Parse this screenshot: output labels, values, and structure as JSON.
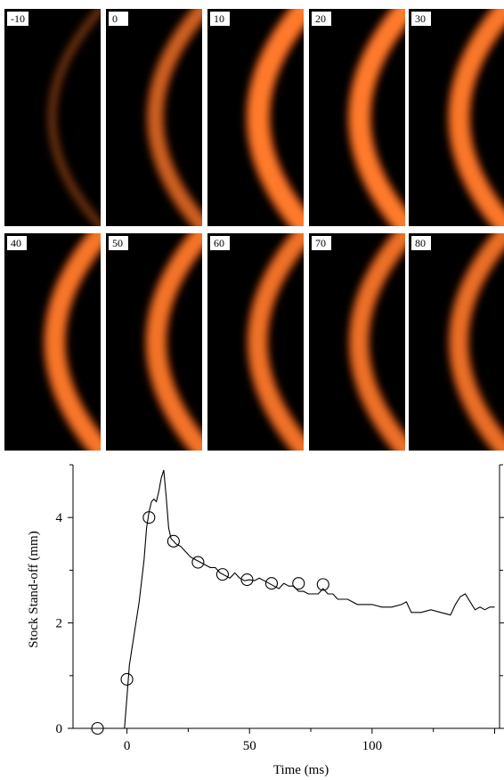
{
  "frames": {
    "labels": [
      "-10",
      "0",
      "10",
      "20",
      "30",
      "40",
      "50",
      "60",
      "70",
      "80"
    ],
    "intensity": [
      0.12,
      0.6,
      1.0,
      0.95,
      0.9,
      0.88,
      0.85,
      0.82,
      0.8,
      0.78
    ],
    "glow_color": "#ff5a14",
    "core_color": "#ff7a2a"
  },
  "chart_data": {
    "type": "line",
    "xlabel": "Time (ms)",
    "ylabel": "Stock Stand-off (mm)",
    "xlim": [
      -22,
      152
    ],
    "ylim": [
      0,
      5
    ],
    "xticks": [
      "0",
      "50",
      "100"
    ],
    "yticks": [
      "0",
      "2",
      "4"
    ],
    "grid": false,
    "series": [
      {
        "style": "line",
        "x": [
          -20,
          -1,
          0,
          1,
          3,
          5,
          7,
          8,
          9,
          10,
          11,
          12,
          13,
          14,
          15,
          16,
          17,
          18,
          19,
          20,
          22,
          24,
          26,
          28,
          30,
          32,
          34,
          36,
          38,
          40,
          42,
          44,
          46,
          48,
          50,
          52,
          54,
          56,
          58,
          60,
          62,
          64,
          66,
          68,
          70,
          72,
          74,
          76,
          78,
          80,
          82,
          84,
          86,
          88,
          90,
          92,
          94,
          96,
          98,
          100,
          104,
          108,
          112,
          114,
          116,
          120,
          124,
          128,
          132,
          134,
          136,
          138,
          140,
          142,
          144,
          146,
          148,
          150
        ],
        "y": [
          0,
          0,
          0.6,
          1.2,
          1.8,
          2.4,
          3.2,
          3.8,
          4.1,
          4.3,
          4.35,
          4.3,
          4.5,
          4.75,
          4.9,
          4.4,
          3.8,
          3.6,
          3.55,
          3.5,
          3.45,
          3.35,
          3.25,
          3.2,
          3.15,
          3.1,
          3.05,
          3.05,
          2.95,
          2.9,
          2.85,
          2.95,
          2.85,
          2.8,
          2.82,
          2.8,
          2.85,
          2.8,
          2.75,
          2.7,
          2.65,
          2.75,
          2.7,
          2.7,
          2.6,
          2.6,
          2.55,
          2.55,
          2.55,
          2.65,
          2.55,
          2.55,
          2.45,
          2.45,
          2.45,
          2.4,
          2.35,
          2.35,
          2.35,
          2.35,
          2.3,
          2.3,
          2.35,
          2.4,
          2.2,
          2.2,
          2.25,
          2.2,
          2.15,
          2.35,
          2.5,
          2.55,
          2.4,
          2.25,
          2.3,
          2.25,
          2.3,
          2.3
        ]
      },
      {
        "style": "markers",
        "marker": "circle",
        "x": [
          -12,
          0,
          9,
          19,
          29,
          39,
          49,
          59,
          70,
          80
        ],
        "y": [
          0,
          0.93,
          4.0,
          3.55,
          3.15,
          2.92,
          2.82,
          2.75,
          2.75,
          2.73
        ]
      }
    ]
  }
}
